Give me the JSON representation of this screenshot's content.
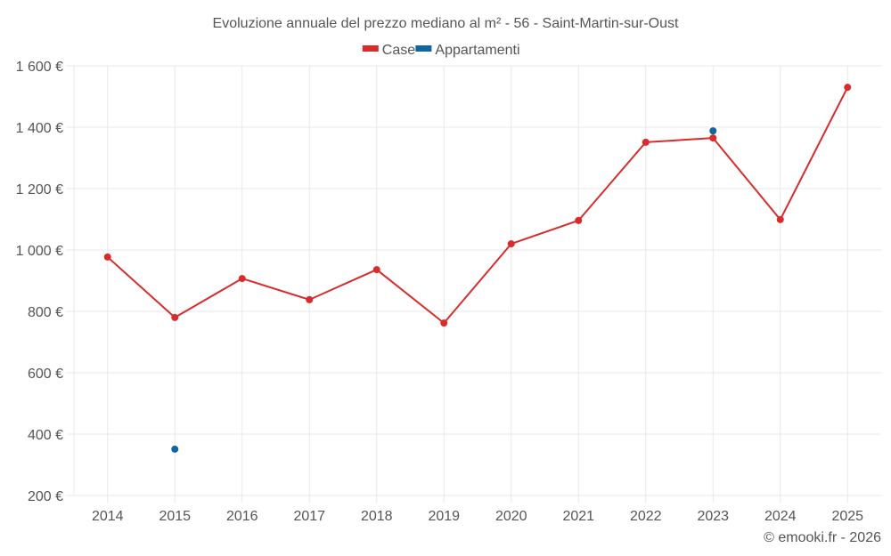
{
  "chart_data": {
    "type": "line",
    "title": "Evoluzione annuale del prezzo mediano al m² - 56 - Saint-Martin-sur-Oust",
    "xlabel": "",
    "ylabel": "",
    "x": [
      "2014",
      "2015",
      "2016",
      "2017",
      "2018",
      "2019",
      "2020",
      "2021",
      "2022",
      "2023",
      "2024",
      "2025"
    ],
    "ylim": [
      200,
      1600
    ],
    "yticks": [
      200,
      400,
      600,
      800,
      1000,
      1200,
      1400,
      1600
    ],
    "ytick_labels": [
      "200 €",
      "400 €",
      "600 €",
      "800 €",
      "1 000 €",
      "1 200 €",
      "1 400 €",
      "1 600 €"
    ],
    "grid": true,
    "legend_position": "top-center",
    "series": [
      {
        "name": "Case",
        "color": "#d92b2b",
        "style": "line-markers",
        "values": [
          977,
          780,
          907,
          838,
          936,
          762,
          1020,
          1096,
          1351,
          1365,
          1099,
          1530
        ]
      },
      {
        "name": "Appartamenti",
        "color": "#0f66a0",
        "style": "markers",
        "values": [
          null,
          351,
          null,
          null,
          null,
          null,
          null,
          null,
          null,
          1388,
          null,
          null
        ]
      }
    ]
  },
  "credit": "© emooki.fr - 2026"
}
